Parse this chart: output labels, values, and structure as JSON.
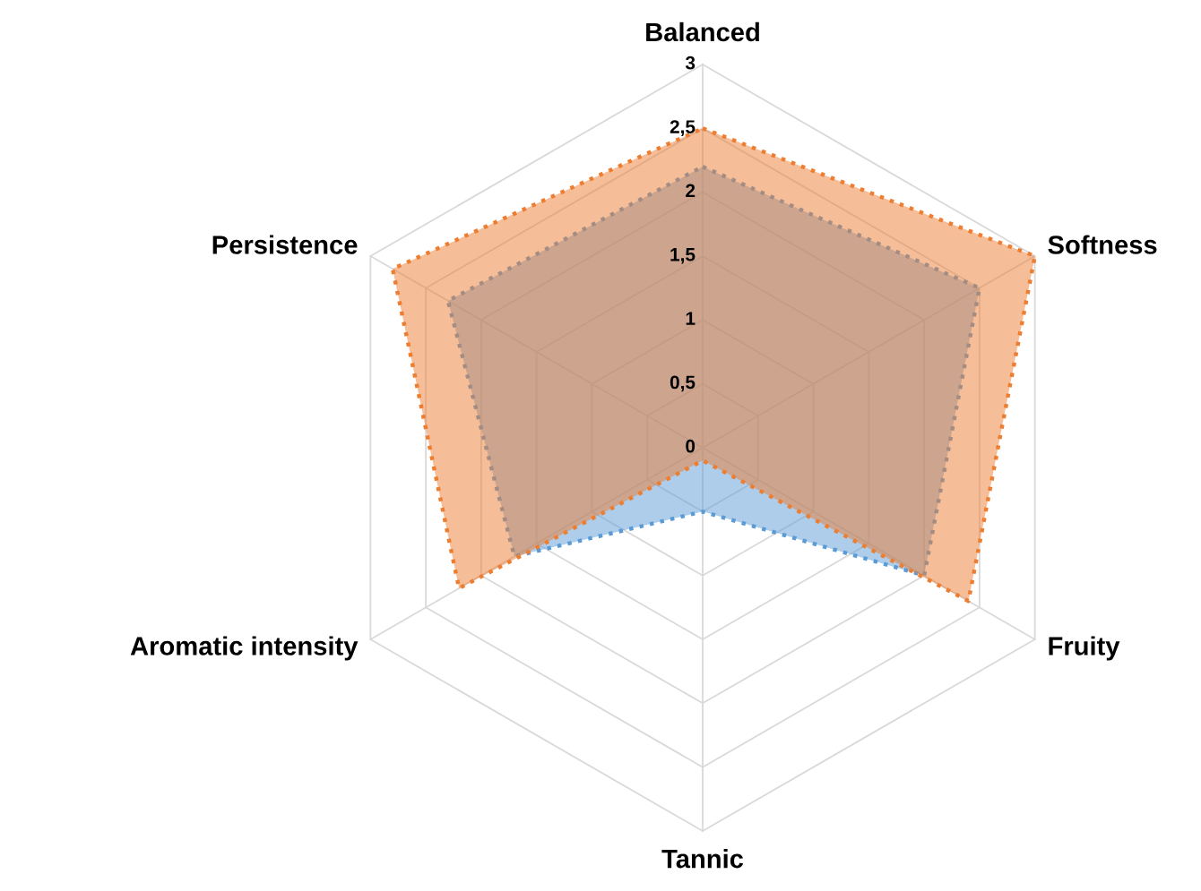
{
  "chart_data": {
    "type": "radar",
    "categories": [
      "Balanced",
      "Softness",
      "Fruity",
      "Tannic",
      "Aromatic intensity",
      "Persistence"
    ],
    "series": [
      {
        "color": "#5b9bd5",
        "values": [
          2.2,
          2.5,
          2.0,
          0.5,
          1.7,
          2.3
        ]
      },
      {
        "color": "#ed7d31",
        "values": [
          2.5,
          3.0,
          2.4,
          0.1,
          2.2,
          2.8
        ]
      }
    ],
    "ylim": [
      0,
      3
    ],
    "yticks": [
      0,
      {
        "value": 0.5,
        "label": "0,5"
      },
      1,
      {
        "value": 1.5,
        "label": "1,5"
      },
      2,
      {
        "value": 2.5,
        "label": "2,5"
      },
      3
    ],
    "grid": true,
    "legend": false,
    "marker": "none",
    "line_style": "dotted"
  }
}
